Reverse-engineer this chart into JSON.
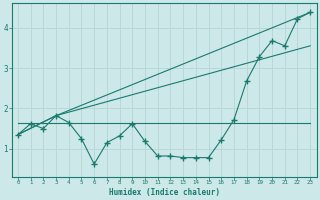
{
  "xlabel": "Humidex (Indice chaleur)",
  "ylabel": "",
  "bg_color": "#cce8e8",
  "line_color": "#1a7a6e",
  "grid_color": "#b8d8d8",
  "xlim": [
    -0.5,
    23.5
  ],
  "ylim": [
    0.3,
    4.6
  ],
  "yticks": [
    1,
    2,
    3,
    4
  ],
  "xticks": [
    0,
    1,
    2,
    3,
    4,
    5,
    6,
    7,
    8,
    9,
    10,
    11,
    12,
    13,
    14,
    15,
    16,
    17,
    18,
    19,
    20,
    21,
    22,
    23
  ],
  "line1_x": [
    0,
    1,
    2,
    3,
    4,
    5,
    6,
    7,
    8,
    9,
    10,
    11,
    12,
    13,
    14,
    15,
    16,
    17,
    18,
    19,
    20,
    21,
    22,
    23
  ],
  "line1_y": [
    1.35,
    1.62,
    1.5,
    1.82,
    1.65,
    1.25,
    0.62,
    1.15,
    1.32,
    1.62,
    1.18,
    0.82,
    0.82,
    0.78,
    0.78,
    0.78,
    1.22,
    1.72,
    2.68,
    3.28,
    3.68,
    3.55,
    4.22,
    4.38
  ],
  "line2_x": [
    0,
    3,
    23
  ],
  "line2_y": [
    1.35,
    1.82,
    4.38
  ],
  "line3_x": [
    0,
    3,
    23
  ],
  "line3_y": [
    1.35,
    1.82,
    3.55
  ],
  "line4_x": [
    0,
    23
  ],
  "line4_y": [
    1.65,
    1.65
  ]
}
